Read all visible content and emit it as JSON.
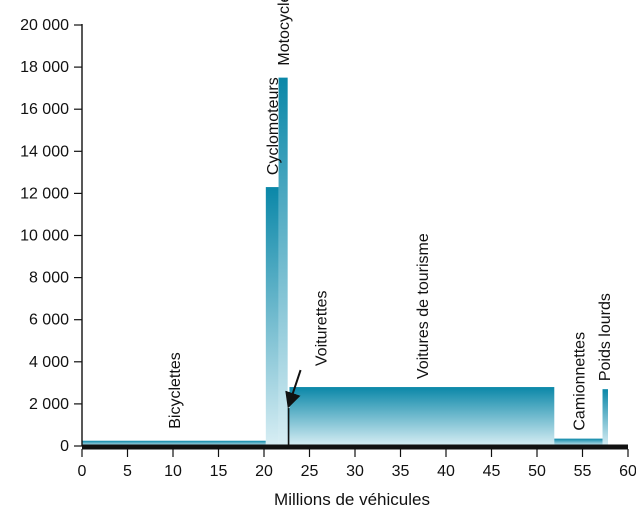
{
  "chart_data": {
    "type": "bar",
    "variant": "variable-width",
    "xlabel": "Millions de véhicules",
    "ylabel": "",
    "xlim": [
      0,
      60
    ],
    "ylim": [
      0,
      20000
    ],
    "x_ticks": [
      0,
      5,
      10,
      15,
      20,
      25,
      30,
      35,
      40,
      45,
      50,
      55,
      60
    ],
    "y_ticks": [
      0,
      2000,
      4000,
      6000,
      8000,
      10000,
      12000,
      14000,
      16000,
      18000,
      20000
    ],
    "x_tick_labels": [
      "0",
      "5",
      "10",
      "15",
      "20",
      "25",
      "30",
      "35",
      "40",
      "45",
      "50",
      "55",
      "60"
    ],
    "y_tick_labels": [
      "0",
      "2 000",
      "4 000",
      "6 000",
      "8 000",
      "10 000",
      "12 000",
      "14 000",
      "16 000",
      "18 000",
      "20 000"
    ],
    "grid": false,
    "legend": "none",
    "colors": {
      "bar_top": "#0a87a8",
      "bar_bottom": "#d8eef4",
      "axis": "#111111",
      "baseline": "#111111"
    },
    "categories": [
      "Bicyclettes",
      "Cyclomoteurs",
      "Motocyclettes",
      "Voiturettes",
      "Voitures de tourisme",
      "Camionnettes",
      "Poids lourds"
    ],
    "bars": [
      {
        "name": "Bicyclettes",
        "x_start": 0,
        "x_end": 20.2,
        "value": 250
      },
      {
        "name": "Cyclomoteurs",
        "x_start": 20.2,
        "x_end": 21.6,
        "value": 12300
      },
      {
        "name": "Motocyclettes",
        "x_start": 21.6,
        "x_end": 22.6,
        "value": 17500
      },
      {
        "name": "Voiturettes",
        "x_start": 22.6,
        "x_end": 22.8,
        "value": 1800
      },
      {
        "name": "Voitures de tourisme",
        "x_start": 22.8,
        "x_end": 51.9,
        "value": 2800
      },
      {
        "name": "Camionnettes",
        "x_start": 51.9,
        "x_end": 57.2,
        "value": 350
      },
      {
        "name": "Poids lourds",
        "x_start": 57.2,
        "x_end": 57.8,
        "value": 2700
      }
    ]
  }
}
